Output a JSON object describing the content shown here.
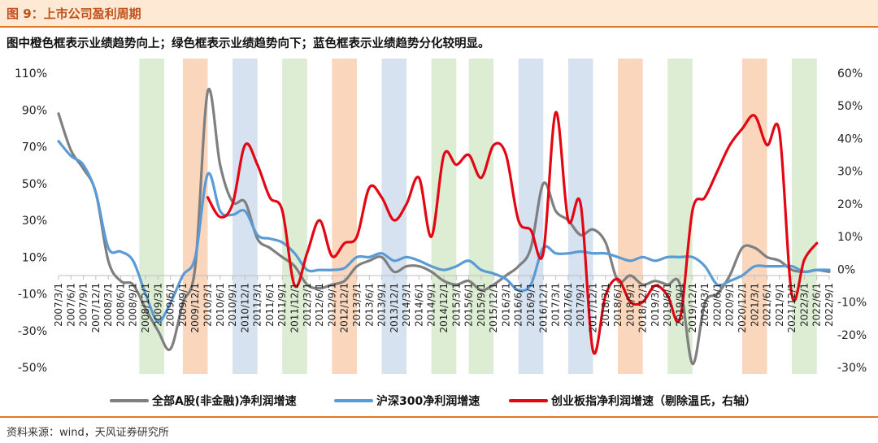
{
  "header": {
    "title": "图 9：上市公司盈利周期"
  },
  "subtitle": "图中橙色框表示业绩趋势向上；绿色框表示业绩趋势向下；蓝色框表示业绩趋势分化较明显。",
  "source": "资料来源：wind，天风证券研究所",
  "chart_data": {
    "type": "line",
    "x_ticks": [
      "2007/3/1",
      "2007/6/1",
      "2007/9/1",
      "2007/12/1",
      "2008/3/1",
      "2008/6/1",
      "2008/9/1",
      "2008/12/1",
      "2009/3/1",
      "2009/6/1",
      "2009/9/1",
      "2009/12/1",
      "2010/3/1",
      "2010/6/1",
      "2010/9/1",
      "2010/12/1",
      "2011/3/1",
      "2011/6/1",
      "2011/9/1",
      "2011/12/1",
      "2012/3/1",
      "2012/6/1",
      "2012/9/1",
      "2012/12/1",
      "2013/3/1",
      "2013/6/1",
      "2013/9/1",
      "2013/12/1",
      "2014/3/1",
      "2014/6/1",
      "2014/9/1",
      "2014/12/1",
      "2015/3/1",
      "2015/6/1",
      "2015/9/1",
      "2015/12/1",
      "2016/3/1",
      "2016/6/1",
      "2016/9/1",
      "2016/12/1",
      "2017/3/1",
      "2017/6/1",
      "2017/9/1",
      "2017/12/1",
      "2018/3/1",
      "2018/6/1",
      "2018/9/1",
      "2018/12/1",
      "2019/3/1",
      "2019/6/1",
      "2019/9/1",
      "2019/12/1",
      "2020/3/1",
      "2020/6/1",
      "2020/9/1",
      "2020/12/1",
      "2021/3/1",
      "2021/6/1",
      "2021/9/1",
      "2021/12/1",
      "2022/3/1",
      "2022/6/1",
      "2022/9/1"
    ],
    "left_axis": {
      "ticks": [
        "110%",
        "90%",
        "70%",
        "50%",
        "30%",
        "10%",
        "-10%",
        "-30%",
        "-50%"
      ],
      "min": -50,
      "max": 110
    },
    "right_axis": {
      "ticks": [
        "60%",
        "50%",
        "40%",
        "30%",
        "20%",
        "10%",
        "0%",
        "-10%",
        "-20%",
        "-30%"
      ],
      "min": -30,
      "max": 60
    },
    "shaded_bands": [
      {
        "color": "green",
        "start": 6.5,
        "end": 8.5
      },
      {
        "color": "orange",
        "start": 10.0,
        "end": 12.0
      },
      {
        "color": "blue",
        "start": 14.0,
        "end": 16.0
      },
      {
        "color": "green",
        "start": 18.0,
        "end": 20.0
      },
      {
        "color": "orange",
        "start": 22.0,
        "end": 24.0
      },
      {
        "color": "blue",
        "start": 26.0,
        "end": 28.0
      },
      {
        "color": "green",
        "start": 30.0,
        "end": 32.0
      },
      {
        "color": "green",
        "start": 33.0,
        "end": 35.0
      },
      {
        "color": "blue",
        "start": 37.0,
        "end": 39.0
      },
      {
        "color": "blue",
        "start": 41.0,
        "end": 43.0
      },
      {
        "color": "orange",
        "start": 45.0,
        "end": 47.0
      },
      {
        "color": "green",
        "start": 49.0,
        "end": 51.0
      },
      {
        "color": "orange",
        "start": 55.0,
        "end": 57.0
      },
      {
        "color": "green",
        "start": 59.0,
        "end": 61.0
      }
    ],
    "band_colors": {
      "green": "#dcedd3",
      "orange": "#fad6bd",
      "blue": "#d7e2f1"
    },
    "series": [
      {
        "name": "全部A股(非金融)净利润增速",
        "axis": "left",
        "color": "#7f7f7f",
        "values": [
          88,
          68,
          58,
          45,
          8,
          -3,
          -5,
          -18,
          -30,
          -40,
          -15,
          5,
          100,
          60,
          40,
          40,
          20,
          15,
          10,
          5,
          -5,
          -7,
          -5,
          -3,
          5,
          8,
          10,
          2,
          5,
          5,
          2,
          -3,
          -5,
          -3,
          -8,
          -5,
          0,
          5,
          15,
          50,
          35,
          30,
          22,
          25,
          18,
          -3,
          0,
          -5,
          -3,
          -5,
          -5,
          -48,
          -15,
          -10,
          0,
          15,
          15,
          10,
          8,
          3,
          2,
          3,
          2
        ]
      },
      {
        "name": "沪深300净利润增速",
        "axis": "left",
        "color": "#5b9bd5",
        "values": [
          73,
          65,
          60,
          45,
          15,
          13,
          8,
          -10,
          -25,
          -15,
          0,
          10,
          55,
          35,
          33,
          35,
          22,
          20,
          18,
          12,
          3,
          3,
          3,
          4,
          10,
          10,
          12,
          8,
          10,
          8,
          5,
          3,
          5,
          8,
          3,
          1,
          -2,
          -8,
          -5,
          15,
          12,
          12,
          13,
          12,
          12,
          10,
          8,
          10,
          8,
          10,
          10,
          10,
          5,
          -5,
          -3,
          0,
          5,
          5,
          5,
          5,
          2,
          3,
          3
        ]
      },
      {
        "name": "创业板指净利润增速（剔除温氏，右轴）",
        "axis": "right",
        "color": "#e30613",
        "start_index": 12,
        "values": [
          22,
          16,
          20,
          38,
          32,
          22,
          18,
          -5,
          5,
          15,
          4,
          8,
          10,
          25,
          22,
          15,
          20,
          28,
          10,
          35,
          32,
          35,
          28,
          38,
          35,
          15,
          12,
          5,
          48,
          15,
          20,
          -25,
          -8,
          -3,
          -10,
          -10,
          -5,
          -8,
          -15,
          18,
          22,
          30,
          38,
          43,
          47,
          38,
          42,
          -8,
          3,
          8
        ]
      }
    ],
    "legend": [
      {
        "label": "全部A股(非金融)净利润增速",
        "color": "#7f7f7f"
      },
      {
        "label": "沪深300净利润增速",
        "color": "#5b9bd5"
      },
      {
        "label": "创业板指净利润增速（剔除温氏，右轴）",
        "color": "#e30613"
      }
    ],
    "legend_position": "bottom",
    "grid": false
  }
}
